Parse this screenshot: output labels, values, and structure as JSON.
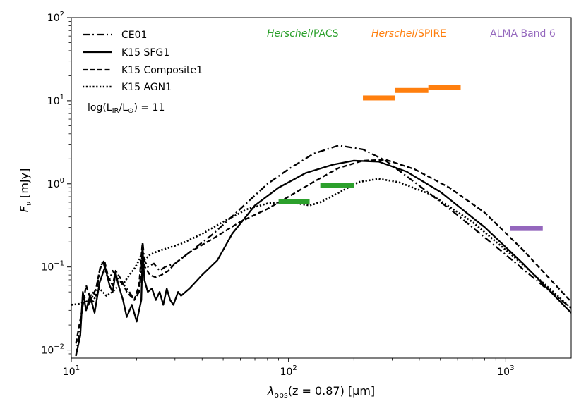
{
  "chart_data": {
    "type": "line",
    "title": "",
    "xscale": "log",
    "yscale": "log",
    "xlim": [
      10,
      2000
    ],
    "ylim": [
      0.008,
      100
    ],
    "xlabel": {
      "prefix": "λ",
      "sub": "obs",
      "rest": "(z = 0.87) [μm]"
    },
    "ylabel": {
      "main": "F",
      "sub": "ν",
      "rest": " [mJy]"
    },
    "xticks": [
      {
        "value": 10,
        "base": "10",
        "exp": "1"
      },
      {
        "value": 100,
        "base": "10",
        "exp": "2"
      },
      {
        "value": 1000,
        "base": "10",
        "exp": "3"
      }
    ],
    "yticks": [
      {
        "value": 0.01,
        "base": "10",
        "exp": "−2"
      },
      {
        "value": 0.1,
        "base": "10",
        "exp": "−1"
      },
      {
        "value": 1,
        "base": "10",
        "exp": "0"
      },
      {
        "value": 10,
        "base": "10",
        "exp": "1"
      },
      {
        "value": 100,
        "base": "10",
        "exp": "2"
      }
    ],
    "series": [
      {
        "name": "CE01",
        "dash": "dashdot",
        "color": "#000000",
        "points": [
          [
            10.5,
            0.0085
          ],
          [
            11,
            0.02
          ],
          [
            11.4,
            0.045
          ],
          [
            12,
            0.035
          ],
          [
            12.5,
            0.05
          ],
          [
            13,
            0.045
          ],
          [
            13.5,
            0.09
          ],
          [
            14,
            0.12
          ],
          [
            14.5,
            0.08
          ],
          [
            15,
            0.07
          ],
          [
            15.5,
            0.09
          ],
          [
            16.5,
            0.07
          ],
          [
            17.5,
            0.06
          ],
          [
            18.5,
            0.05
          ],
          [
            19.5,
            0.04
          ],
          [
            20.5,
            0.05
          ],
          [
            21,
            0.09
          ],
          [
            21.3,
            0.2
          ],
          [
            21.7,
            0.12
          ],
          [
            22.5,
            0.1
          ],
          [
            24,
            0.11
          ],
          [
            25.5,
            0.09
          ],
          [
            27,
            0.1
          ],
          [
            30,
            0.11
          ],
          [
            35,
            0.15
          ],
          [
            45,
            0.25
          ],
          [
            60,
            0.5
          ],
          [
            80,
            1.0
          ],
          [
            100,
            1.5
          ],
          [
            130,
            2.3
          ],
          [
            170,
            2.9
          ],
          [
            220,
            2.6
          ],
          [
            280,
            1.9
          ],
          [
            400,
            0.95
          ],
          [
            600,
            0.42
          ],
          [
            1000,
            0.14
          ],
          [
            1500,
            0.058
          ],
          [
            2000,
            0.032
          ]
        ]
      },
      {
        "name": "K15 SFG1",
        "dash": "solid",
        "color": "#000000",
        "points": [
          [
            10.5,
            0.0085
          ],
          [
            11,
            0.015
          ],
          [
            11.3,
            0.05
          ],
          [
            11.7,
            0.03
          ],
          [
            12.2,
            0.045
          ],
          [
            12.8,
            0.028
          ],
          [
            13.5,
            0.065
          ],
          [
            14.3,
            0.1
          ],
          [
            15,
            0.06
          ],
          [
            15.5,
            0.05
          ],
          [
            16,
            0.085
          ],
          [
            16.5,
            0.06
          ],
          [
            17.3,
            0.04
          ],
          [
            18,
            0.025
          ],
          [
            19,
            0.035
          ],
          [
            20,
            0.022
          ],
          [
            21,
            0.04
          ],
          [
            21.3,
            0.16
          ],
          [
            21.7,
            0.07
          ],
          [
            22.5,
            0.05
          ],
          [
            23.5,
            0.055
          ],
          [
            24.5,
            0.04
          ],
          [
            25.5,
            0.05
          ],
          [
            26.5,
            0.035
          ],
          [
            27.5,
            0.055
          ],
          [
            28.5,
            0.04
          ],
          [
            29.5,
            0.035
          ],
          [
            31,
            0.05
          ],
          [
            32,
            0.045
          ],
          [
            35,
            0.055
          ],
          [
            40,
            0.08
          ],
          [
            47,
            0.12
          ],
          [
            55,
            0.25
          ],
          [
            70,
            0.55
          ],
          [
            90,
            0.9
          ],
          [
            120,
            1.35
          ],
          [
            160,
            1.7
          ],
          [
            200,
            1.9
          ],
          [
            260,
            1.85
          ],
          [
            350,
            1.4
          ],
          [
            500,
            0.8
          ],
          [
            800,
            0.3
          ],
          [
            1200,
            0.11
          ],
          [
            2000,
            0.028
          ]
        ]
      },
      {
        "name": "K15 Composite1",
        "dash": "dashed",
        "color": "#000000",
        "points": [
          [
            10.5,
            0.012
          ],
          [
            11.2,
            0.03
          ],
          [
            11.7,
            0.06
          ],
          [
            12.3,
            0.04
          ],
          [
            13,
            0.055
          ],
          [
            13.6,
            0.1
          ],
          [
            14.2,
            0.12
          ],
          [
            14.8,
            0.075
          ],
          [
            15.5,
            0.06
          ],
          [
            16,
            0.09
          ],
          [
            17,
            0.07
          ],
          [
            18,
            0.05
          ],
          [
            19.5,
            0.04
          ],
          [
            20.5,
            0.06
          ],
          [
            21.2,
            0.18
          ],
          [
            21.8,
            0.1
          ],
          [
            23,
            0.08
          ],
          [
            24.5,
            0.075
          ],
          [
            26,
            0.08
          ],
          [
            28,
            0.09
          ],
          [
            30,
            0.11
          ],
          [
            35,
            0.15
          ],
          [
            45,
            0.22
          ],
          [
            60,
            0.35
          ],
          [
            80,
            0.5
          ],
          [
            100,
            0.7
          ],
          [
            130,
            1.05
          ],
          [
            170,
            1.55
          ],
          [
            220,
            1.9
          ],
          [
            280,
            1.95
          ],
          [
            380,
            1.5
          ],
          [
            550,
            0.9
          ],
          [
            800,
            0.45
          ],
          [
            1200,
            0.16
          ],
          [
            2000,
            0.038
          ]
        ]
      },
      {
        "name": "K15 AGN1",
        "dash": "dotted",
        "color": "#000000",
        "points": [
          [
            10,
            0.035
          ],
          [
            11,
            0.036
          ],
          [
            12,
            0.04
          ],
          [
            12.5,
            0.037
          ],
          [
            13.5,
            0.055
          ],
          [
            14.5,
            0.045
          ],
          [
            15.5,
            0.05
          ],
          [
            16.5,
            0.06
          ],
          [
            17.5,
            0.065
          ],
          [
            18.5,
            0.08
          ],
          [
            19.5,
            0.095
          ],
          [
            20.5,
            0.12
          ],
          [
            21.2,
            0.15
          ],
          [
            21.6,
            0.12
          ],
          [
            23,
            0.14
          ],
          [
            25,
            0.155
          ],
          [
            28,
            0.17
          ],
          [
            32,
            0.19
          ],
          [
            40,
            0.25
          ],
          [
            50,
            0.35
          ],
          [
            65,
            0.5
          ],
          [
            80,
            0.58
          ],
          [
            95,
            0.6
          ],
          [
            110,
            0.58
          ],
          [
            125,
            0.55
          ],
          [
            140,
            0.6
          ],
          [
            170,
            0.78
          ],
          [
            210,
            1.05
          ],
          [
            260,
            1.15
          ],
          [
            320,
            1.05
          ],
          [
            450,
            0.75
          ],
          [
            700,
            0.35
          ],
          [
            1100,
            0.13
          ],
          [
            2000,
            0.032
          ]
        ]
      }
    ],
    "bars": [
      {
        "instrument": "PACS",
        "color": "#2ca02c",
        "x0": 90,
        "x1": 125,
        "y": 0.61
      },
      {
        "instrument": "PACS",
        "color": "#2ca02c",
        "x0": 140,
        "x1": 200,
        "y": 0.96
      },
      {
        "instrument": "SPIRE",
        "color": "#ff7f0e",
        "x0": 220,
        "x1": 310,
        "y": 10.8
      },
      {
        "instrument": "SPIRE",
        "color": "#ff7f0e",
        "x0": 310,
        "x1": 440,
        "y": 13.3
      },
      {
        "instrument": "SPIRE",
        "color": "#ff7f0e",
        "x0": 440,
        "x1": 620,
        "y": 14.5
      },
      {
        "instrument": "ALMA",
        "color": "#9467bd",
        "x0": 1050,
        "x1": 1480,
        "y": 0.29
      }
    ],
    "legend": {
      "position": "top-left",
      "entries": [
        "CE01",
        "K15 SFG1",
        "K15 Composite1",
        "K15 AGN1"
      ],
      "annotation_pre": "log(L",
      "annotation_sub1": "IR",
      "annotation_mid": "/L",
      "annotation_sub2": "⊙",
      "annotation_post": ") = 11"
    },
    "instrument_labels": {
      "pacs_italic": "Herschel",
      "pacs_rest": "/PACS",
      "spire_italic": "Herschel",
      "spire_rest": "/SPIRE",
      "alma": "ALMA Band 6"
    },
    "colors": {
      "pacs": "#2ca02c",
      "spire": "#ff7f0e",
      "alma": "#9467bd"
    }
  }
}
